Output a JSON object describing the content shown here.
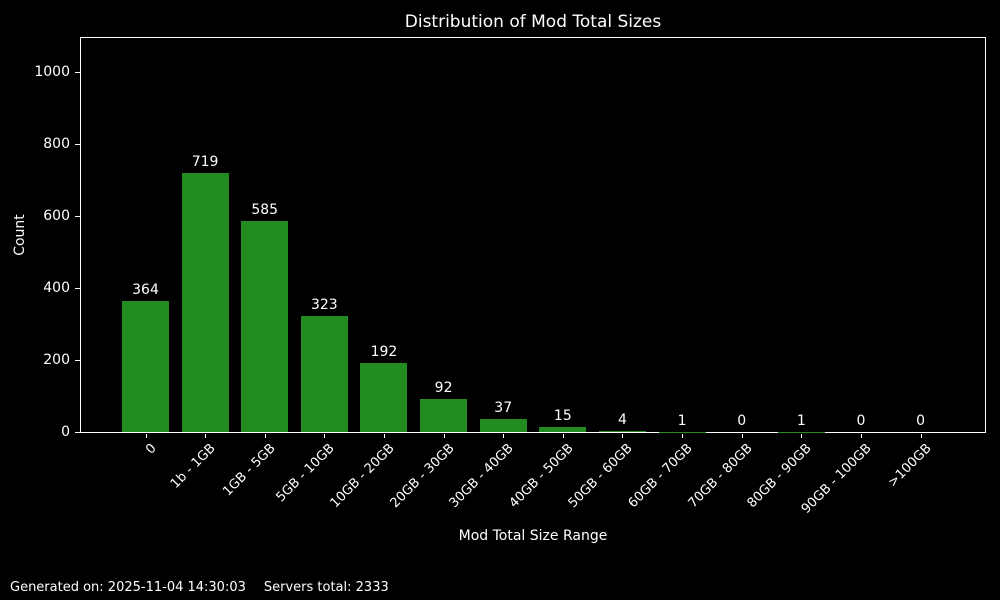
{
  "chart_data": {
    "type": "bar",
    "title": "Distribution of Mod Total Sizes",
    "xlabel": "Mod Total Size Range",
    "ylabel": "Count",
    "categories": [
      "0",
      "1b - 1GB",
      "1GB - 5GB",
      "5GB - 10GB",
      "10GB - 20GB",
      "20GB - 30GB",
      "30GB - 40GB",
      "40GB - 50GB",
      "50GB - 60GB",
      "60GB - 70GB",
      "70GB - 80GB",
      "80GB - 90GB",
      "90GB - 100GB",
      ">100GB"
    ],
    "values": [
      364,
      719,
      585,
      323,
      192,
      92,
      37,
      15,
      4,
      1,
      0,
      1,
      0,
      0
    ],
    "yticks": [
      0,
      200,
      400,
      600,
      800,
      1000
    ],
    "ylim": [
      0,
      1094
    ],
    "bar_color": "#228B22",
    "background_color": "#000000",
    "text_color": "#ffffff",
    "grid": false,
    "legend": "none",
    "bar_labels_shown": true,
    "x_tick_rotation_deg": 45
  },
  "footer": {
    "generated": "Generated on: 2025-11-04 14:30:03",
    "servers_total": "Servers total: 2333"
  }
}
